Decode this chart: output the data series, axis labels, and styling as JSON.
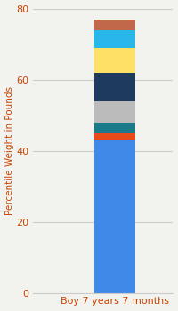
{
  "category": "Boy 7 years 7 months",
  "segments": [
    {
      "value": 43,
      "color": "#4189E8"
    },
    {
      "value": 2,
      "color": "#E84A1A"
    },
    {
      "value": 3,
      "color": "#1A7A8A"
    },
    {
      "value": 6,
      "color": "#BBBBBB"
    },
    {
      "value": 8,
      "color": "#1E3A5F"
    },
    {
      "value": 7,
      "color": "#FFE066"
    },
    {
      "value": 5,
      "color": "#29B6E8"
    },
    {
      "value": 3,
      "color": "#C1674A"
    }
  ],
  "ylabel": "Percentile Weight in Pounds",
  "ylim": [
    0,
    80
  ],
  "yticks": [
    0,
    20,
    40,
    60,
    80
  ],
  "background_color": "#F2F2EE",
  "bar_width": 0.35,
  "ylabel_fontsize": 7.5,
  "tick_fontsize": 8,
  "xlabel_fontsize": 8,
  "xlabel_color": "#CC4400",
  "ylabel_color": "#CC4400",
  "tick_color": "#CC4400",
  "grid_color": "#CCCCCC"
}
